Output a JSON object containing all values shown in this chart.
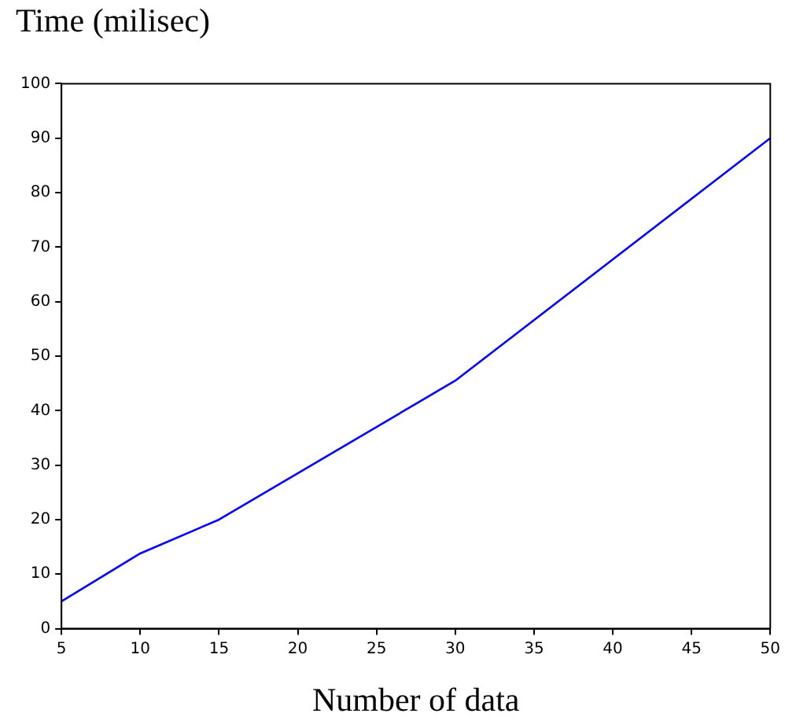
{
  "chart_data": {
    "type": "line",
    "xlabel": "Number of data",
    "ylabel": "Time (milisec)",
    "x": [
      5,
      10,
      15,
      30,
      50
    ],
    "series": [
      {
        "color": "#0000ff",
        "values": [
          5,
          13.8,
          20,
          45.5,
          90
        ]
      }
    ],
    "xlim": [
      5,
      50
    ],
    "xticks": [
      5,
      10,
      15,
      20,
      25,
      30,
      35,
      40,
      45,
      50
    ],
    "ylim": [
      0,
      100
    ],
    "yticks": [
      0,
      10,
      20,
      30,
      40,
      50,
      60,
      70,
      80,
      90,
      100
    ],
    "grid": false,
    "legend": false,
    "marker": "none",
    "line_style": "solid"
  }
}
